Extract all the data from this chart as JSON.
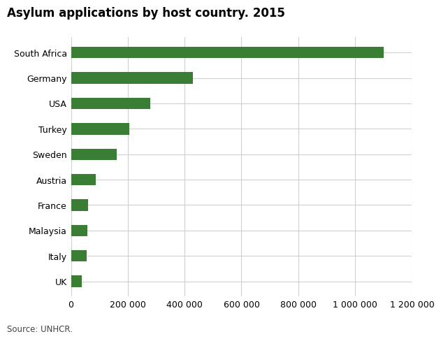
{
  "title": "Asylum applications by host country. 2015",
  "source": "Source: UNHCR.",
  "categories": [
    "South Africa",
    "Germany",
    "USA",
    "Turkey",
    "Sweden",
    "Austria",
    "France",
    "Malaysia",
    "Italy",
    "UK"
  ],
  "values": [
    1100000,
    430000,
    280000,
    205000,
    162000,
    88000,
    60000,
    58000,
    55000,
    38000
  ],
  "bar_color": "#3a7d35",
  "background_color": "#ffffff",
  "grid_color": "#d0d0d0",
  "xlim": [
    0,
    1200000
  ],
  "xticks": [
    0,
    200000,
    400000,
    600000,
    800000,
    1000000,
    1200000
  ],
  "xtick_labels": [
    "0",
    "200 000",
    "400 000",
    "600 000",
    "800 000",
    "1 000 000",
    "1 200 000"
  ],
  "title_fontsize": 12,
  "tick_fontsize": 9,
  "source_fontsize": 8.5,
  "bar_height": 0.45
}
